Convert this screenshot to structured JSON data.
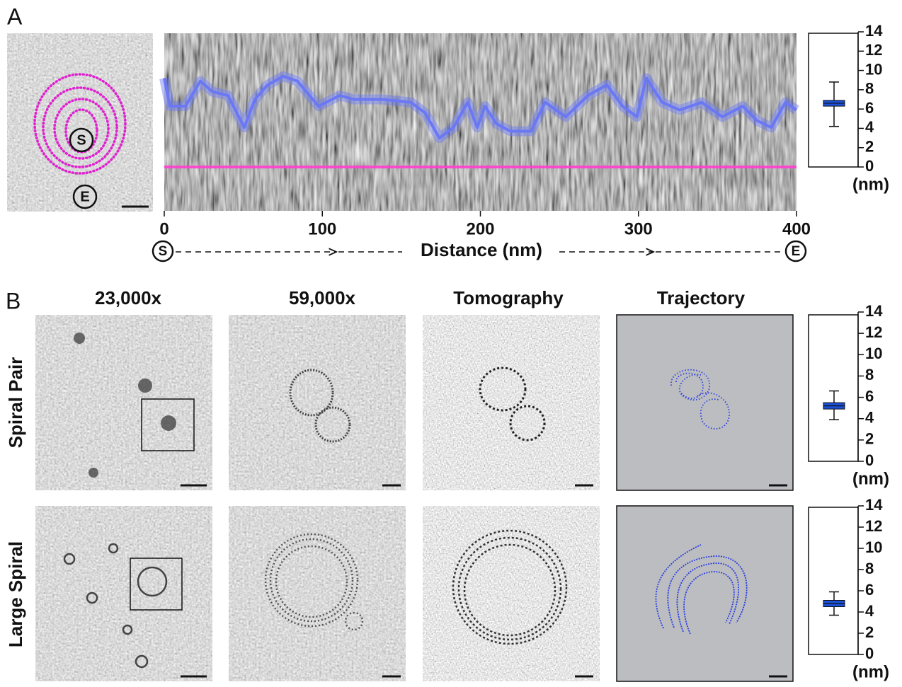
{
  "panel_a": {
    "label": "A",
    "start_marker": "S",
    "end_marker": "E",
    "profile": {
      "type": "line",
      "x": [
        0,
        3.6,
        13.4,
        22.8,
        30.5,
        40.3,
        50.6,
        57.3,
        65.4,
        75.3,
        84.2,
        97.6,
        111,
        120,
        138,
        156,
        165,
        174,
        183,
        192,
        198,
        203,
        210,
        219,
        232,
        241,
        254,
        268,
        280,
        290,
        299,
        305,
        315,
        326,
        340,
        353,
        366,
        375,
        384,
        393,
        400
      ],
      "values": [
        9.2,
        6.3,
        6.3,
        8.9,
        7.8,
        7.4,
        4.1,
        7.0,
        8.5,
        9.4,
        8.9,
        6.3,
        7.4,
        7.0,
        7.0,
        6.7,
        5.6,
        3.0,
        4.1,
        6.7,
        4.1,
        6.3,
        4.5,
        3.7,
        3.7,
        6.7,
        5.2,
        7.4,
        8.5,
        6.3,
        5.2,
        9.2,
        6.7,
        5.9,
        6.7,
        5.2,
        6.3,
        4.8,
        4.1,
        6.7,
        5.9
      ],
      "color": "#6a78f5",
      "baseline": 0,
      "baseline_color": "#ff3fcf",
      "xlim": [
        0,
        400
      ],
      "xticks": [
        0,
        100,
        200,
        300,
        400
      ],
      "xlabel": "Distance (nm)"
    },
    "boxplot": {
      "type": "box",
      "whisker_low": 4.2,
      "q1": 6.3,
      "median": 6.6,
      "q3": 6.9,
      "whisker_high": 8.8,
      "color": "#1a4fd6",
      "ylim": [
        0,
        14
      ],
      "yticks": [
        0,
        2,
        4,
        6,
        8,
        10,
        12,
        14
      ],
      "unit": "(nm)"
    }
  },
  "panel_b": {
    "label": "B",
    "columns": [
      "23,000x",
      "59,000x",
      "Tomography",
      "Trajectory"
    ],
    "rows": [
      {
        "name": "Spiral Pair",
        "boxplot": {
          "type": "box",
          "whisker_low": 3.9,
          "q1": 4.9,
          "median": 5.2,
          "q3": 5.5,
          "whisker_high": 6.6,
          "color": "#1a4fd6",
          "ylim": [
            0,
            14
          ],
          "yticks": [
            0,
            2,
            4,
            6,
            8,
            10,
            12,
            14
          ],
          "unit": "(nm)"
        }
      },
      {
        "name": "Large Spiral",
        "boxplot": {
          "type": "box",
          "whisker_low": 3.7,
          "q1": 4.5,
          "median": 4.8,
          "q3": 5.1,
          "whisker_high": 5.9,
          "color": "#1a4fd6",
          "ylim": [
            0,
            14
          ],
          "yticks": [
            0,
            2,
            4,
            6,
            8,
            10,
            12,
            14
          ],
          "unit": "(nm)"
        }
      }
    ]
  }
}
